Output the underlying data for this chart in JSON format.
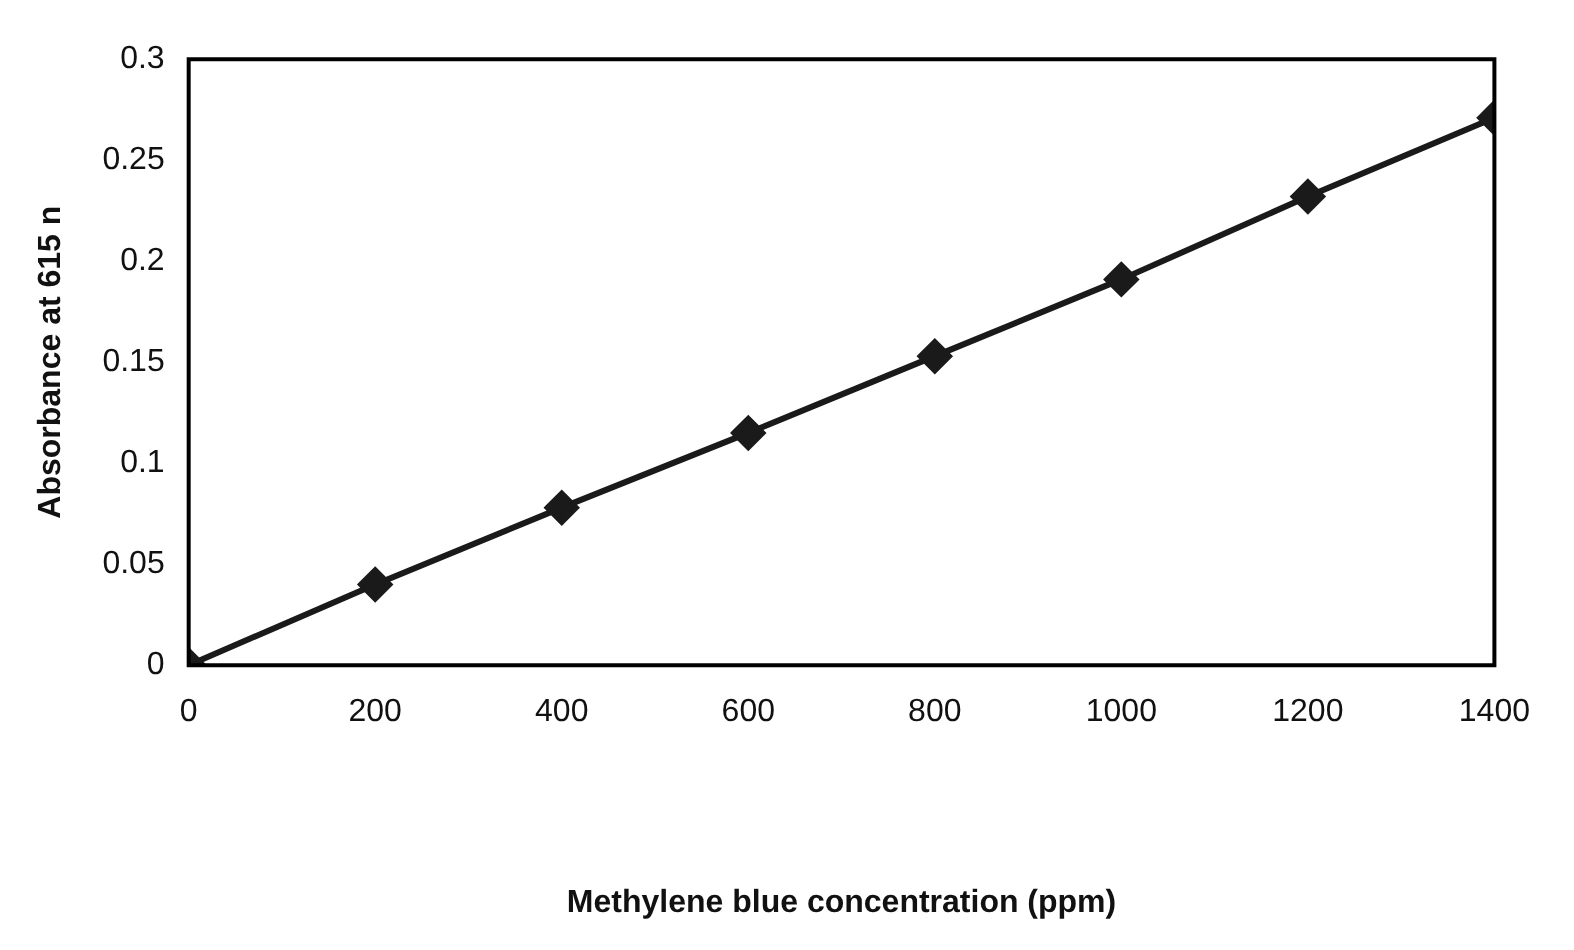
{
  "chart_data": {
    "type": "line",
    "xlabel": "Methylene blue concentration (ppm)",
    "ylabel": "Absorbance at 615 n",
    "x": [
      0,
      200,
      400,
      600,
      800,
      1000,
      1200,
      1400
    ],
    "series": [
      {
        "color": "#1a1a1a",
        "values": [
          0,
          0.04,
          0.078,
          0.115,
          0.153,
          0.191,
          0.232,
          0.271
        ]
      }
    ],
    "xlim": [
      0,
      1400
    ],
    "xticks": [
      0,
      200,
      400,
      600,
      800,
      1000,
      1200,
      1400
    ],
    "ylim": [
      0,
      0.3
    ],
    "yticks": [
      0,
      0.05,
      0.1,
      0.15,
      0.2,
      0.25,
      0.3
    ],
    "grid": false,
    "legend": false,
    "marker": "diamond",
    "line_style": "solid"
  }
}
